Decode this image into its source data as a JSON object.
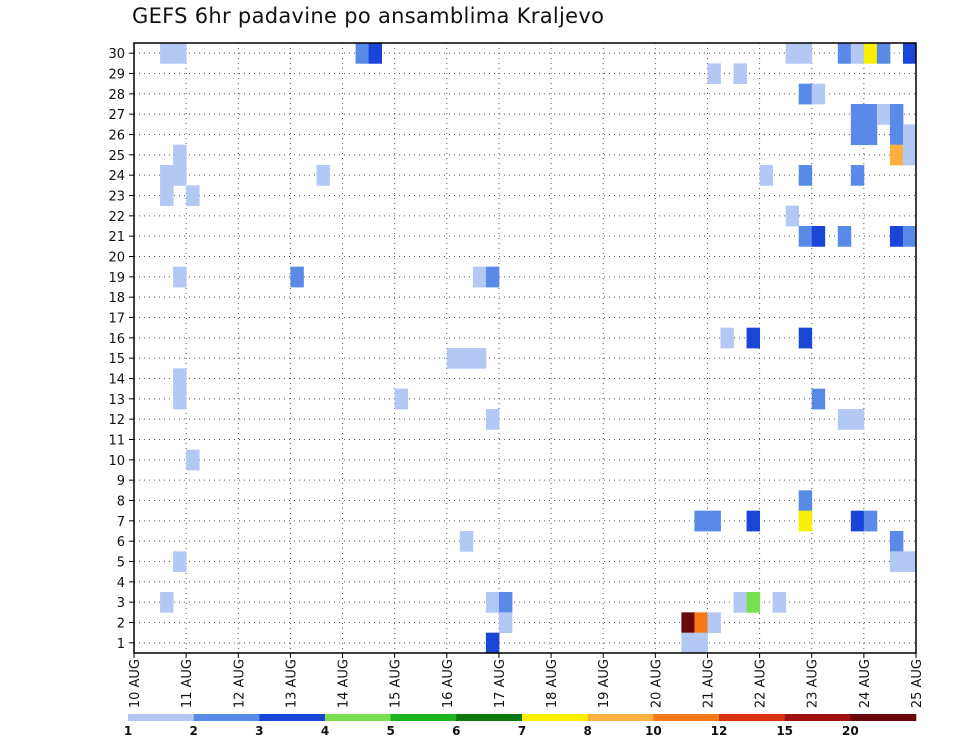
{
  "chart_data": {
    "type": "heatmap",
    "title": "GEFS 6hr padavine po ansamblima Kraljevo",
    "x_tick_labels": [
      "10 AUG",
      "11 AUG",
      "12 AUG",
      "13 AUG",
      "14 AUG",
      "15 AUG",
      "16 AUG",
      "17 AUG",
      "18 AUG",
      "19 AUG",
      "20 AUG",
      "21 AUG",
      "22 AUG",
      "23 AUG",
      "24 AUG",
      "25 AUG"
    ],
    "y_tick_labels": [
      "1",
      "2",
      "3",
      "4",
      "5",
      "6",
      "7",
      "8",
      "9",
      "10",
      "11",
      "12",
      "13",
      "14",
      "15",
      "16",
      "17",
      "18",
      "19",
      "20",
      "21",
      "22",
      "23",
      "24",
      "25",
      "26",
      "27",
      "28",
      "29",
      "30"
    ],
    "xlim": [
      0,
      60
    ],
    "ylim": [
      0.5,
      30.5
    ],
    "grid": true,
    "colorbar": {
      "ticks": [
        "1",
        "2",
        "3",
        "4",
        "5",
        "6",
        "7",
        "8",
        "10",
        "12",
        "15",
        "20"
      ],
      "colors": [
        "#b4c8f4",
        "#5a8ae8",
        "#1a46d8",
        "#78e050",
        "#1cb41c",
        "#0c780c",
        "#f8f000",
        "#f8b040",
        "#f87818",
        "#d83010",
        "#a01010",
        "#680808"
      ]
    },
    "cells": [
      {
        "t": 2,
        "m": 30,
        "c": 0
      },
      {
        "t": 3,
        "m": 30,
        "c": 0
      },
      {
        "t": 17,
        "m": 30,
        "c": 1
      },
      {
        "t": 18,
        "m": 30,
        "c": 2
      },
      {
        "t": 50,
        "m": 30,
        "c": 0
      },
      {
        "t": 51,
        "m": 30,
        "c": 0
      },
      {
        "t": 54,
        "m": 30,
        "c": 1
      },
      {
        "t": 55,
        "m": 30,
        "c": 0
      },
      {
        "t": 56,
        "m": 30,
        "c": 6
      },
      {
        "t": 57,
        "m": 30,
        "c": 1
      },
      {
        "t": 59,
        "m": 30,
        "c": 2
      },
      {
        "t": 44,
        "m": 29,
        "c": 0
      },
      {
        "t": 46,
        "m": 29,
        "c": 0
      },
      {
        "t": 51,
        "m": 28,
        "c": 1
      },
      {
        "t": 52,
        "m": 28,
        "c": 0
      },
      {
        "t": 55,
        "m": 27,
        "c": 1
      },
      {
        "t": 56,
        "m": 27,
        "c": 1
      },
      {
        "t": 57,
        "m": 27,
        "c": 0
      },
      {
        "t": 58,
        "m": 27,
        "c": 1
      },
      {
        "t": 55,
        "m": 26,
        "c": 1
      },
      {
        "t": 56,
        "m": 26,
        "c": 1
      },
      {
        "t": 58,
        "m": 26,
        "c": 1
      },
      {
        "t": 59,
        "m": 26,
        "c": 0
      },
      {
        "t": 3,
        "m": 25,
        "c": 0
      },
      {
        "t": 58,
        "m": 25,
        "c": 7
      },
      {
        "t": 59,
        "m": 25,
        "c": 0
      },
      {
        "t": 2,
        "m": 24,
        "c": 0
      },
      {
        "t": 3,
        "m": 24,
        "c": 0
      },
      {
        "t": 14,
        "m": 24,
        "c": 0
      },
      {
        "t": 48,
        "m": 24,
        "c": 0
      },
      {
        "t": 51,
        "m": 24,
        "c": 1
      },
      {
        "t": 55,
        "m": 24,
        "c": 1
      },
      {
        "t": 2,
        "m": 23,
        "c": 0
      },
      {
        "t": 4,
        "m": 23,
        "c": 0
      },
      {
        "t": 50,
        "m": 22,
        "c": 0
      },
      {
        "t": 51,
        "m": 21,
        "c": 1
      },
      {
        "t": 52,
        "m": 21,
        "c": 2
      },
      {
        "t": 54,
        "m": 21,
        "c": 1
      },
      {
        "t": 58,
        "m": 21,
        "c": 2
      },
      {
        "t": 59,
        "m": 21,
        "c": 1
      },
      {
        "t": 3,
        "m": 19,
        "c": 0
      },
      {
        "t": 12,
        "m": 19,
        "c": 1
      },
      {
        "t": 26,
        "m": 19,
        "c": 0
      },
      {
        "t": 27,
        "m": 19,
        "c": 1
      },
      {
        "t": 45,
        "m": 16,
        "c": 0
      },
      {
        "t": 47,
        "m": 16,
        "c": 2
      },
      {
        "t": 51,
        "m": 16,
        "c": 2
      },
      {
        "t": 24,
        "m": 15,
        "c": 0
      },
      {
        "t": 25,
        "m": 15,
        "c": 0
      },
      {
        "t": 26,
        "m": 15,
        "c": 0
      },
      {
        "t": 3,
        "m": 14,
        "c": 0
      },
      {
        "t": 3,
        "m": 13,
        "c": 0
      },
      {
        "t": 20,
        "m": 13,
        "c": 0
      },
      {
        "t": 52,
        "m": 13,
        "c": 1
      },
      {
        "t": 27,
        "m": 12,
        "c": 0
      },
      {
        "t": 54,
        "m": 12,
        "c": 0
      },
      {
        "t": 55,
        "m": 12,
        "c": 0
      },
      {
        "t": 4,
        "m": 10,
        "c": 0
      },
      {
        "t": 51,
        "m": 8,
        "c": 1
      },
      {
        "t": 43,
        "m": 7,
        "c": 1
      },
      {
        "t": 44,
        "m": 7,
        "c": 1
      },
      {
        "t": 47,
        "m": 7,
        "c": 2
      },
      {
        "t": 51,
        "m": 7,
        "c": 6
      },
      {
        "t": 55,
        "m": 7,
        "c": 2
      },
      {
        "t": 56,
        "m": 7,
        "c": 1
      },
      {
        "t": 25,
        "m": 6,
        "c": 0
      },
      {
        "t": 58,
        "m": 6,
        "c": 1
      },
      {
        "t": 3,
        "m": 5,
        "c": 0
      },
      {
        "t": 58,
        "m": 5,
        "c": 0
      },
      {
        "t": 59,
        "m": 5,
        "c": 0
      },
      {
        "t": 2,
        "m": 3,
        "c": 0
      },
      {
        "t": 27,
        "m": 3,
        "c": 0
      },
      {
        "t": 28,
        "m": 3,
        "c": 1
      },
      {
        "t": 46,
        "m": 3,
        "c": 0
      },
      {
        "t": 47,
        "m": 3,
        "c": 3
      },
      {
        "t": 49,
        "m": 3,
        "c": 0
      },
      {
        "t": 28,
        "m": 2,
        "c": 0
      },
      {
        "t": 42,
        "m": 2,
        "c": 11
      },
      {
        "t": 43,
        "m": 2,
        "c": 8
      },
      {
        "t": 44,
        "m": 2,
        "c": 0
      },
      {
        "t": 27,
        "m": 1,
        "c": 2
      },
      {
        "t": 42,
        "m": 1,
        "c": 0
      },
      {
        "t": 43,
        "m": 1,
        "c": 0
      }
    ]
  }
}
